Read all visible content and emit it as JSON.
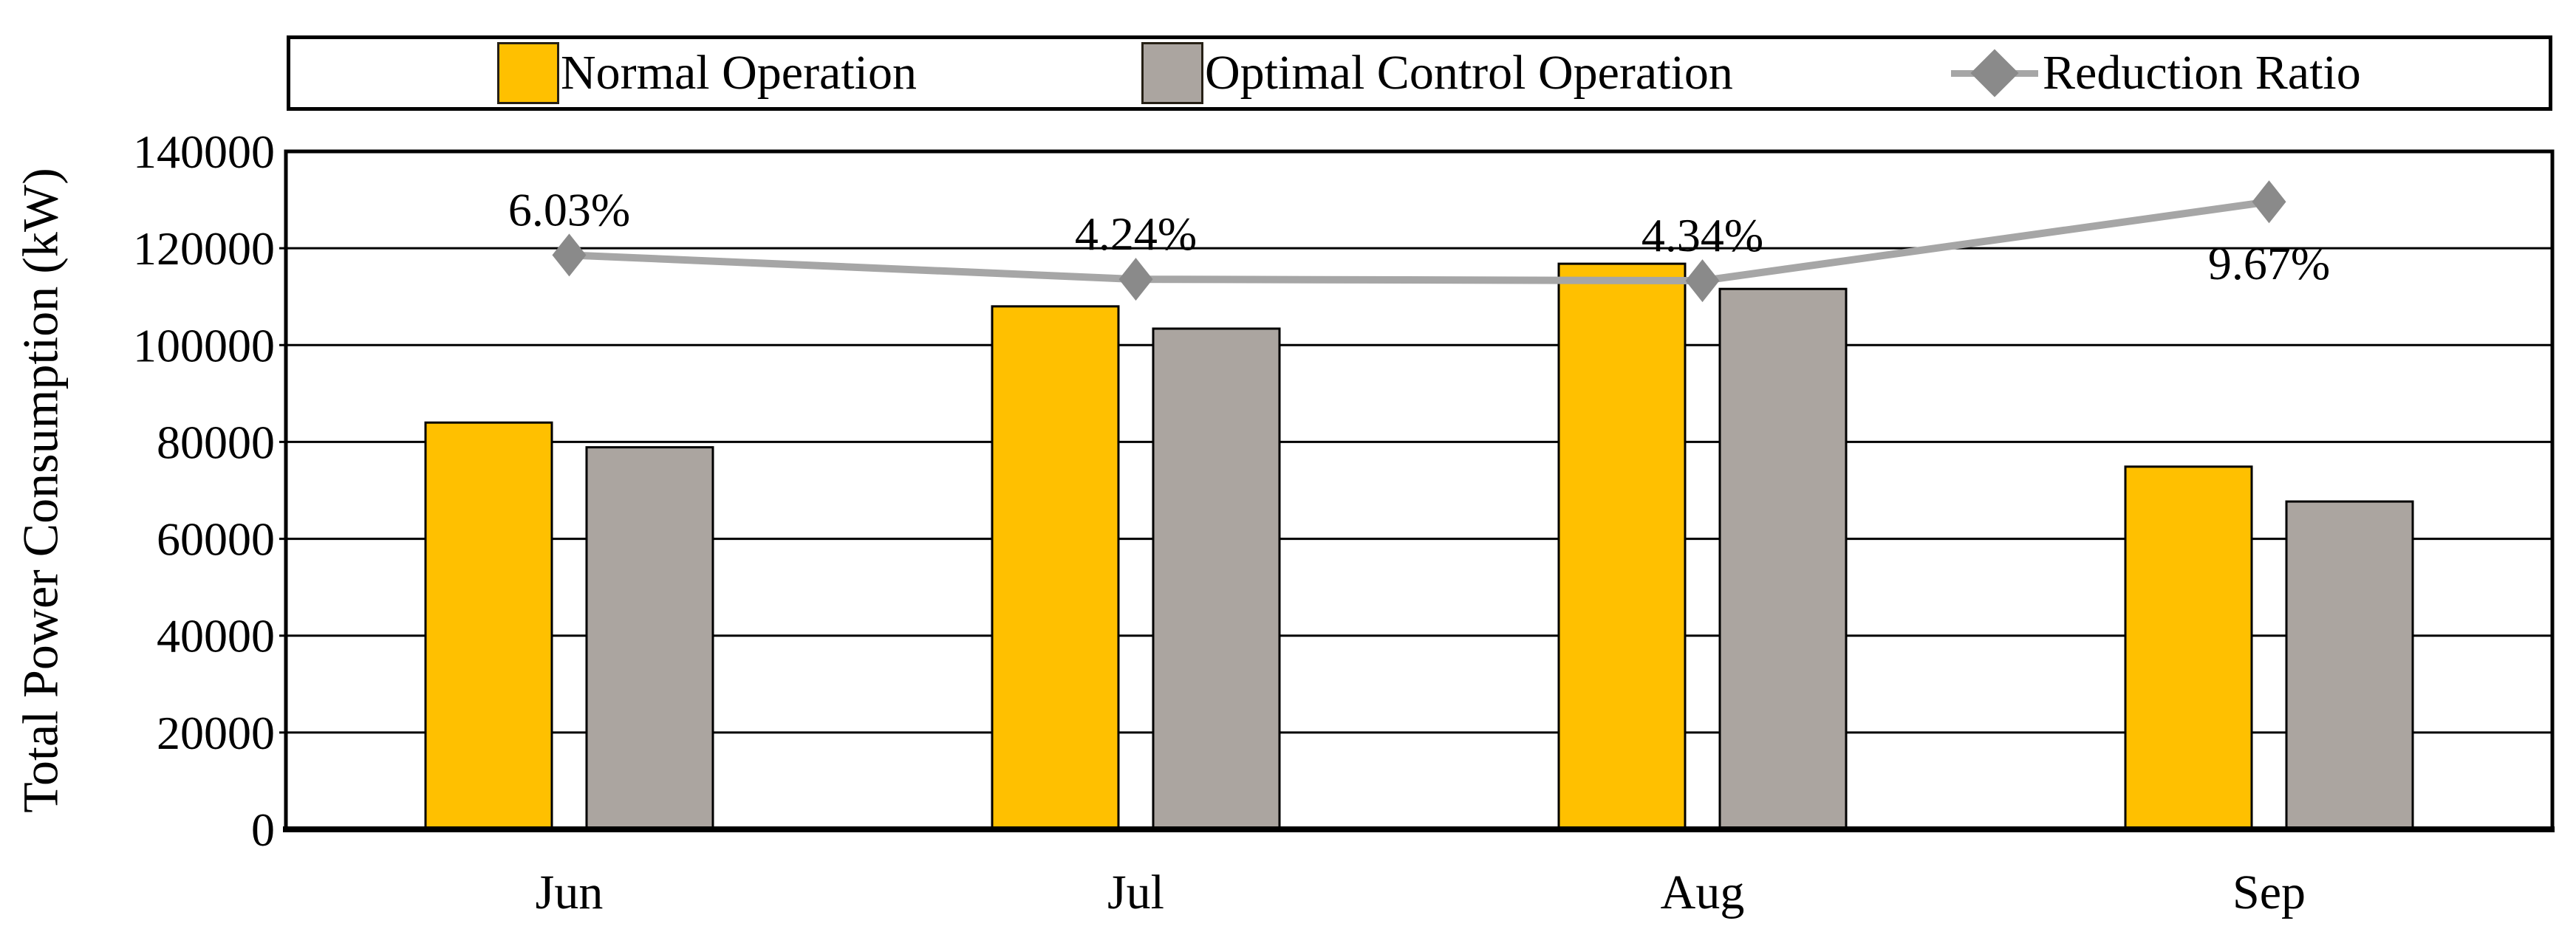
{
  "page": {
    "background": "#FFFFFF"
  },
  "chart_data": {
    "type": "combo",
    "title": "",
    "categories": [
      "Jun",
      "Jul",
      "Aug",
      "Sep"
    ],
    "series": [
      {
        "name": "Normal Operation",
        "type": "bar",
        "color": "#FFC000",
        "values": [
          84000,
          108000,
          116800,
          74900
        ]
      },
      {
        "name": "Optimal Control Operation",
        "type": "bar",
        "color": "#ABA5A0",
        "values": [
          78900,
          103400,
          111600,
          67700
        ]
      },
      {
        "name": "Reduction Ratio",
        "type": "line",
        "color": "#A6A6A6",
        "marker": "diamond",
        "marker_color": "#8A8A8A",
        "values_percent": [
          6.03,
          4.24,
          4.34,
          9.67
        ],
        "point_labels": [
          "6.03%",
          "4.24%",
          "4.34%",
          "9.67%"
        ],
        "label_sides": [
          "above",
          "above",
          "above",
          "below"
        ],
        "plotted_kw_equiv": [
          118600,
          113600,
          113300,
          129600
        ]
      }
    ],
    "xlabel": "",
    "ylabel": "Total Power Consumption (kW)",
    "ylim": [
      0,
      140000
    ],
    "ytick_step": 20000,
    "yticks": [
      "0",
      "20000",
      "40000",
      "60000",
      "80000",
      "100000",
      "120000",
      "140000"
    ],
    "grid": "horizontal",
    "legend_position": "top-boxed"
  }
}
